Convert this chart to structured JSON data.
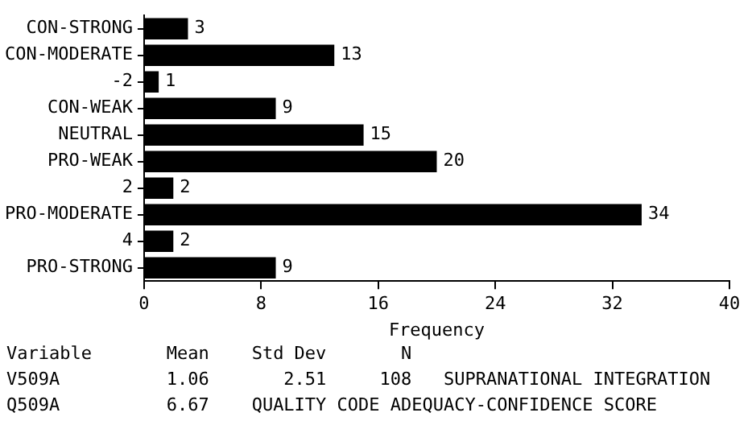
{
  "chart_data": {
    "type": "bar",
    "orientation": "horizontal",
    "xlabel": "Frequency",
    "categories": [
      "CON-STRONG",
      "CON-MODERATE",
      "-2",
      "CON-WEAK",
      "NEUTRAL",
      "PRO-WEAK",
      "2",
      "PRO-MODERATE",
      "4",
      "PRO-STRONG"
    ],
    "values": [
      3,
      13,
      1,
      9,
      15,
      20,
      2,
      34,
      2,
      9
    ],
    "color": "#000000",
    "xlim": [
      0,
      40
    ],
    "xticks": [
      0,
      8,
      16,
      24,
      32,
      40
    ],
    "grid": false,
    "legend": false,
    "data_labels": true,
    "annotations": [
      "Variable       Mean    Std Dev       N",
      "V509A          1.06       2.51     108   SUPRANATIONAL INTEGRATION",
      "Q509A          6.67    QUALITY CODE ADEQUACY-CONFIDENCE SCORE"
    ]
  }
}
